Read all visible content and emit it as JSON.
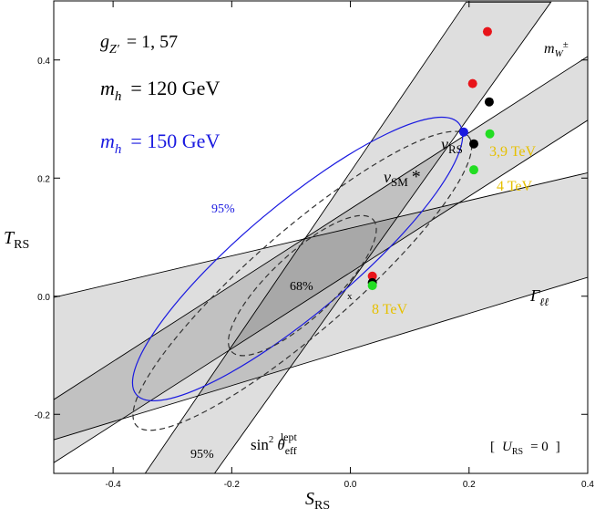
{
  "chart_data": {
    "type": "scatter",
    "xlim": [
      -0.5,
      0.4
    ],
    "ylim": [
      -0.3,
      0.5
    ],
    "xticks": [
      -0.4,
      -0.2,
      {
        "value": 0,
        "label": "0.0"
      },
      0.2,
      0.4
    ],
    "yticks": [
      -0.2,
      {
        "value": 0,
        "label": "0.0"
      },
      0.2,
      0.4
    ],
    "xlabel": {
      "symbol": "S",
      "sub": "RS"
    },
    "ylabel": {
      "symbol": "T",
      "sub": "RS"
    },
    "series": [
      {
        "color": "#e8141a",
        "x": [
          0.231,
          0.206,
          0.037
        ],
        "values": [
          0.448,
          0.36,
          0.034
        ]
      },
      {
        "color": "#000000",
        "x": [
          0.234,
          0.208,
          0.037
        ],
        "values": [
          0.329,
          0.258,
          0.023
        ]
      },
      {
        "color": "#22dd22",
        "x": [
          0.235,
          0.208,
          0.037
        ],
        "values": [
          0.275,
          0.214,
          0.018
        ]
      },
      {
        "color": "#1a1ae0",
        "x": [
          0.191
        ],
        "values": [
          0.278
        ]
      }
    ],
    "bands": [
      {
        "edges": [
          [
            [
              -0.346,
              -0.3
            ],
            [
              0.195,
              0.498
            ]
          ],
          [
            [
              -0.229,
              -0.3
            ],
            [
              0.338,
              0.498
            ]
          ]
        ]
      },
      {
        "edges": [
          [
            [
              -0.5,
              -0.002
            ],
            [
              0.4,
              0.209
            ]
          ],
          [
            [
              -0.5,
              -0.243
            ],
            [
              0.4,
              0.032
            ]
          ]
        ]
      },
      {
        "edges": [
          [
            [
              -0.5,
              -0.175
            ],
            [
              0.4,
              0.406
            ]
          ],
          [
            [
              -0.5,
              -0.282
            ],
            [
              0.4,
              0.298
            ]
          ]
        ]
      }
    ],
    "contours": [
      {
        "color": "#1a1ae0",
        "dashed": false,
        "center": [
          -0.089,
          0.063
        ],
        "axes": [
          0.355,
          0.092
        ],
        "angle": 40
      },
      {
        "color": "#333333",
        "dashed": true,
        "center": [
          -0.081,
          0.026
        ],
        "axes": [
          0.371,
          0.085
        ],
        "angle": 41
      },
      {
        "color": "#333333",
        "dashed": true,
        "center": [
          -0.081,
          0.018
        ],
        "axes": [
          0.163,
          0.054
        ],
        "angle": 43
      }
    ],
    "annotations": {
      "coupling": {
        "symbol": "g",
        "sub": "Z′",
        "text": "= 1, 57"
      },
      "mh120": {
        "symbol": "m",
        "sub": "h",
        "text": "= 120 GeV"
      },
      "mh150": {
        "symbol": "m",
        "sub": "h",
        "text": "= 150 GeV"
      },
      "mw": {
        "symbol": "m",
        "sub": "W",
        "sup": "±"
      },
      "vrs": {
        "symbol": "v",
        "sub": "RS"
      },
      "vsm": {
        "symbol": "v",
        "sub": "SM",
        "text": "*"
      },
      "tev39": "3,9 TeV",
      "tev4": "4 TeV",
      "tev8": "8 TeV",
      "cl95_blue": "95%",
      "cl68": "68%",
      "cl95": "95%",
      "x_mark": "x",
      "gamma": {
        "symbol": "Γ",
        "sub": "ℓℓ"
      },
      "sin": {
        "text": "sin",
        "sup2": "2",
        "symbol": "θ",
        "sub": "eff",
        "sup": "lept"
      },
      "urs": {
        "open": "[",
        "symbol": "U",
        "sub": "RS",
        "text": "= 0",
        "close": "]"
      }
    }
  }
}
